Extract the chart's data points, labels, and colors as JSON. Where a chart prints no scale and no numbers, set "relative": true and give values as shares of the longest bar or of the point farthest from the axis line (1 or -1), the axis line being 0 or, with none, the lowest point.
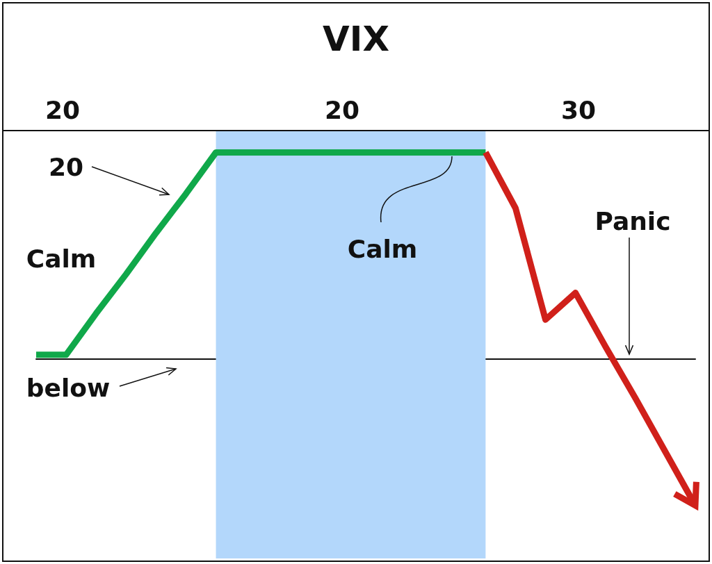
{
  "chart_data": {
    "type": "line",
    "title": "VIX",
    "relative": true,
    "grid": false,
    "marker": "none",
    "line_style": "solid",
    "categories": [
      null,
      null,
      null,
      null,
      null,
      null,
      null,
      null,
      null,
      null,
      null,
      null,
      null,
      null,
      null,
      null,
      null,
      null,
      null,
      null,
      null,
      null,
      null
    ],
    "series": [
      {
        "color": "#10a84a",
        "values": [
          0.02,
          0.02,
          0.22,
          0.41,
          0.61,
          0.8,
          1,
          1,
          1,
          1,
          1,
          1,
          1,
          1,
          1,
          1,
          null,
          null,
          null,
          null,
          null,
          null,
          null
        ]
      },
      {
        "color": "#d0201a",
        "values": [
          null,
          null,
          null,
          null,
          null,
          null,
          null,
          null,
          null,
          null,
          null,
          null,
          null,
          null,
          null,
          1,
          0.73,
          0.19,
          0.32,
          0.06,
          -0.19,
          -0.45,
          -0.71
        ]
      }
    ],
    "annotations": [
      "20",
      "Calm",
      "Calm",
      "Panic",
      "below",
      "20",
      "20",
      "30"
    ]
  }
}
